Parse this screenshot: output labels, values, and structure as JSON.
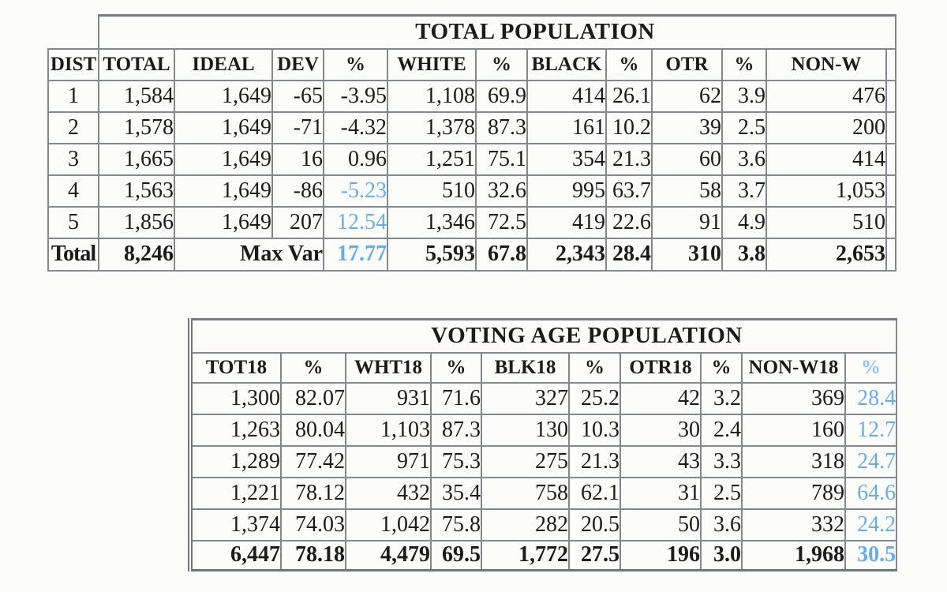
{
  "colors": {
    "highlight_blue": "#68ADE6",
    "text": "#1b1b1b",
    "grid_border": "#83888d",
    "page_background": "#fcfcfa"
  },
  "total_population": {
    "title": "TOTAL POPULATION",
    "columns": [
      "DIST",
      "TOTAL",
      "IDEAL",
      "DEV",
      "%",
      "WHITE",
      "%",
      "BLACK",
      "%",
      "OTR",
      "%",
      "NON-W"
    ],
    "rows": [
      [
        "1",
        "1,584",
        "1,649",
        "-65",
        "-3.95",
        "1,108",
        "69.9",
        "414",
        "26.1",
        "62",
        "3.9",
        "476"
      ],
      [
        "2",
        "1,578",
        "1,649",
        "-71",
        "-4.32",
        "1,378",
        "87.3",
        "161",
        "10.2",
        "39",
        "2.5",
        "200"
      ],
      [
        "3",
        "1,665",
        "1,649",
        "16",
        "0.96",
        "1,251",
        "75.1",
        "354",
        "21.3",
        "60",
        "3.6",
        "414"
      ],
      [
        "4",
        "1,563",
        "1,649",
        "-86",
        "-5.23",
        "510",
        "32.6",
        "995",
        "63.7",
        "58",
        "3.7",
        "1,053"
      ],
      [
        "5",
        "1,856",
        "1,649",
        "207",
        "12.54",
        "1,346",
        "72.5",
        "419",
        "22.6",
        "91",
        "4.9",
        "510"
      ]
    ],
    "blue_pct_rows": [
      3,
      4
    ],
    "total_row": {
      "label": "Total",
      "total": "8,246",
      "max_var_label": "Max Var",
      "max_var_pct": "17.77",
      "white": "5,593",
      "white_pct": "67.8",
      "black": "2,343",
      "black_pct": "28.4",
      "otr": "310",
      "otr_pct": "3.8",
      "non_w": "2,653"
    }
  },
  "voting_age_population": {
    "title": "VOTING AGE POPULATION",
    "columns": [
      "TOT18",
      "%",
      "WHT18",
      "%",
      "BLK18",
      "%",
      "OTR18",
      "%",
      "NON-W18",
      "%"
    ],
    "rows": [
      [
        "1,300",
        "82.07",
        "931",
        "71.6",
        "327",
        "25.2",
        "42",
        "3.2",
        "369",
        "28.4"
      ],
      [
        "1,263",
        "80.04",
        "1,103",
        "87.3",
        "130",
        "10.3",
        "30",
        "2.4",
        "160",
        "12.7"
      ],
      [
        "1,289",
        "77.42",
        "971",
        "75.3",
        "275",
        "21.3",
        "43",
        "3.3",
        "318",
        "24.7"
      ],
      [
        "1,221",
        "78.12",
        "432",
        "35.4",
        "758",
        "62.1",
        "31",
        "2.5",
        "789",
        "64.6"
      ],
      [
        "1,374",
        "74.03",
        "1,042",
        "75.8",
        "282",
        "20.5",
        "50",
        "3.6",
        "332",
        "24.2"
      ]
    ],
    "total_row": [
      "6,447",
      "78.18",
      "4,479",
      "69.5",
      "1,772",
      "27.5",
      "196",
      "3.0",
      "1,968",
      "30.5"
    ]
  }
}
